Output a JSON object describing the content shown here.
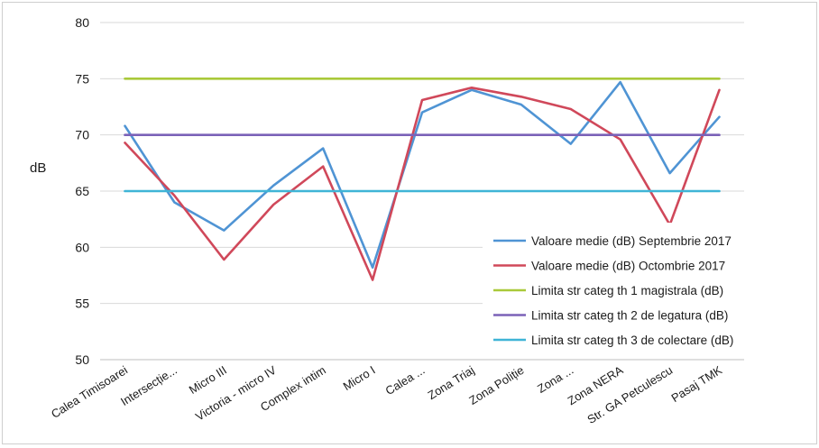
{
  "chart_data": {
    "type": "line",
    "title": "",
    "xlabel": "",
    "ylabel": "dB",
    "ylim": [
      50,
      80
    ],
    "yticks": [
      50,
      55,
      60,
      65,
      70,
      75,
      80
    ],
    "grid": "horizontal",
    "legend_position": "bottom-right",
    "categories": [
      "Calea Timisoarei",
      "Intersecție...",
      "Micro III",
      "Victoria - micro IV",
      "Complex intim",
      "Micro I",
      "Calea ...",
      "Zona Triaj",
      "Zona Poliție",
      "Zona ...",
      "Zona NERA",
      "Str. GA Petculescu",
      "Pasaj TMK"
    ],
    "series": [
      {
        "name": "Valoare medie (dB) Septembrie 2017",
        "color": "#4f94d4",
        "values": [
          70.8,
          64.0,
          61.5,
          65.5,
          68.8,
          58.2,
          72.0,
          74.0,
          72.7,
          69.2,
          74.7,
          66.6,
          71.6
        ]
      },
      {
        "name": "Valoare medie (dB) Octombrie 2017",
        "color": "#d0485a",
        "values": [
          69.3,
          64.6,
          58.9,
          63.8,
          67.2,
          57.1,
          73.1,
          74.2,
          73.4,
          72.3,
          69.6,
          62.0,
          74.0
        ]
      },
      {
        "name": "Limita str categ th 1 magistrala (dB)",
        "color": "#a9c93a",
        "values": [
          75,
          75,
          75,
          75,
          75,
          75,
          75,
          75,
          75,
          75,
          75,
          75,
          75
        ]
      },
      {
        "name": "Limita str categ th 2 de legatura (dB)",
        "color": "#7b62b8",
        "values": [
          70,
          70,
          70,
          70,
          70,
          70,
          70,
          70,
          70,
          70,
          70,
          70,
          70
        ]
      },
      {
        "name": "Limita str categ th 3 de colectare (dB)",
        "color": "#3fb4d6",
        "values": [
          65,
          65,
          65,
          65,
          65,
          65,
          65,
          65,
          65,
          65,
          65,
          65,
          65
        ]
      }
    ]
  }
}
